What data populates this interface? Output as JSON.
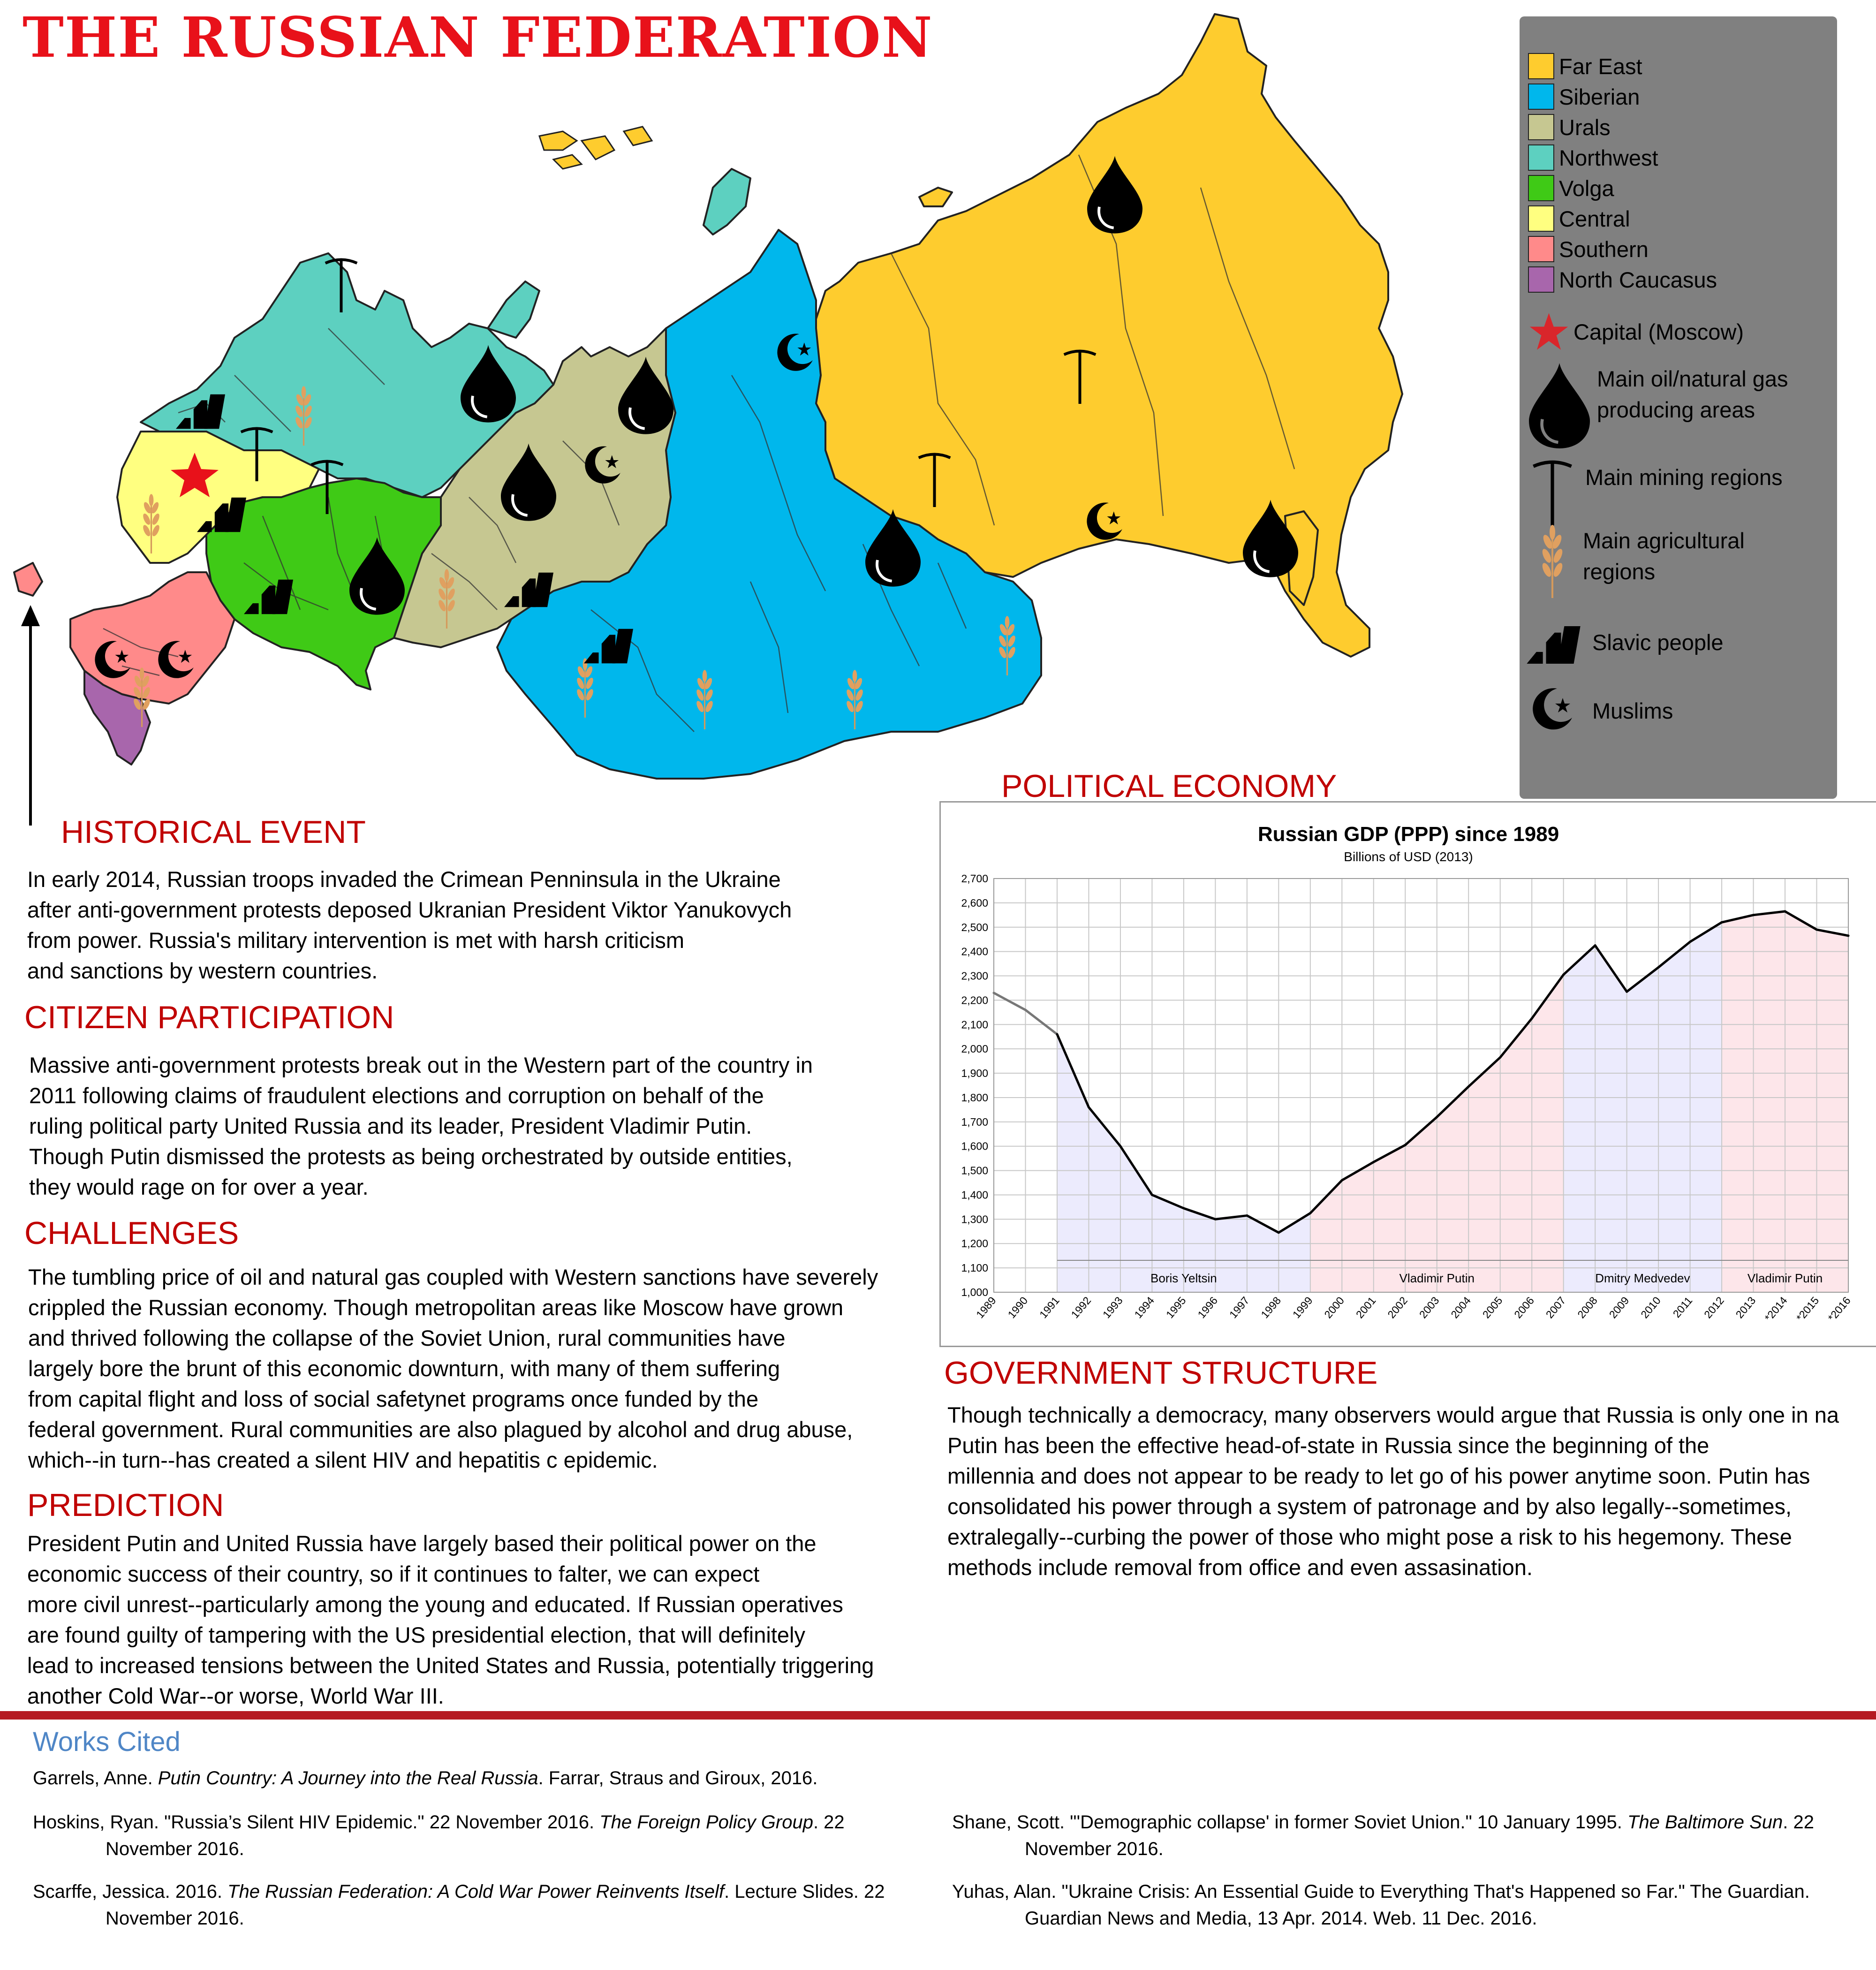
{
  "page": {
    "title": "THE RUSSIAN FEDERATION",
    "colors": {
      "title": "#e8111a",
      "heading": "#c00000",
      "rule": "#b51a22",
      "works_cited": "#4f86c6"
    }
  },
  "legend": {
    "regions": [
      {
        "label": "Far East",
        "color": "#fecc2e"
      },
      {
        "label": "Siberian",
        "color": "#00b7ec"
      },
      {
        "label": "Urals",
        "color": "#c6c791"
      },
      {
        "label": "Northwest",
        "color": "#5dd0c0"
      },
      {
        "label": "Volga",
        "color": "#3fca16"
      },
      {
        "label": "Central",
        "color": "#ffff80"
      },
      {
        "label": "Southern",
        "color": "#ff8a8a"
      },
      {
        "label": "North Caucasus",
        "color": "#a866ac"
      }
    ],
    "capital": "Capital (Moscow)",
    "oil": [
      "Main oil/natural gas",
      "producing areas"
    ],
    "mining": "Main mining regions",
    "agri": [
      "Main agricultural",
      "regions"
    ],
    "slavic": "Slavic people",
    "muslims": "Muslims",
    "icons": [
      "star-icon",
      "oil-drop-icon",
      "pickaxe-icon",
      "wheat-icon",
      "slavic-stripes-icon",
      "crescent-star-icon"
    ]
  },
  "sections": {
    "historical": {
      "heading": "HISTORICAL EVENT",
      "lines": [
        "In early 2014, Russian troops invaded the Crimean Penninsula in the Ukraine",
        "after anti-government protests deposed Ukranian President Viktor Yanukovych",
        "from power. Russia's military intervention is met with harsh criticism",
        "and sanctions by western countries."
      ]
    },
    "citizen": {
      "heading": "CITIZEN PARTICIPATION",
      "lines": [
        "Massive anti-government protests break out in the Western part of the country in",
        "2011 following claims of fraudulent elections and corruption on behalf of the",
        "ruling political party United Russia and its leader, President Vladimir Putin.",
        "Though Putin dismissed the protests as being orchestrated by outside entities,",
        "they would rage on for over a year."
      ]
    },
    "challenges": {
      "heading": "CHALLENGES",
      "lines": [
        "The tumbling price of oil and natural gas coupled with Western sanctions have severely",
        "crippled the Russian economy. Though metropolitan areas like Moscow have grown",
        "and thrived following the collapse of the Soviet Union, rural communities have",
        "largely bore the brunt of this economic downturn, with many of them suffering",
        "from capital flight and loss of social safetynet programs once funded by the",
        "federal government. Rural communities are also plagued by alcohol and drug abuse,",
        "which--in turn--has created a silent HIV and hepatitis c epidemic."
      ]
    },
    "prediction": {
      "heading": "PREDICTION",
      "lines": [
        "President Putin and United Russia have largely based their political power on the",
        "economic success of their country, so if it continues to falter, we can expect",
        "more civil unrest--particularly among the young and educated. If Russian operatives",
        "are found guilty of tampering with the US presidential election, that will definitely",
        "lead to increased tensions between the United States and Russia, potentially triggering",
        "another Cold War--or worse, World War III."
      ]
    },
    "political_economy": {
      "heading": "POLITICAL ECONOMY"
    },
    "government": {
      "heading": "GOVERNMENT STRUCTURE",
      "lines": [
        "Though technically a democracy, many observers would argue that Russia is only one in na",
        "Putin has been the effective head-of-state in Russia since the beginning of the",
        "millennia and does not appear to be ready to let go of his power anytime soon. Putin has",
        "consolidated his power through a system of patronage and by also legally--sometimes,",
        "extralegally--curbing the power of those who might pose a risk to his hegemony. These",
        "methods include removal from office and even assasination."
      ]
    }
  },
  "chart_data": {
    "type": "line",
    "title": "Russian GDP (PPP) since 1989",
    "subtitle": "Billions of USD (2013)",
    "x": [
      "1989",
      "1990",
      "1991",
      "1992",
      "1993",
      "1994",
      "1995",
      "1996",
      "1997",
      "1998",
      "1999",
      "2000",
      "2001",
      "2002",
      "2003",
      "2004",
      "2005",
      "2006",
      "2007",
      "2008",
      "2009",
      "2010",
      "2011",
      "2012",
      "2013",
      "*2014",
      "*2015",
      "*2016"
    ],
    "values": [
      2230,
      2160,
      2060,
      1760,
      1600,
      1400,
      1345,
      1300,
      1315,
      1245,
      1325,
      1460,
      1535,
      1605,
      1720,
      1845,
      1965,
      2125,
      2305,
      2425,
      2235,
      2335,
      2440,
      2520,
      2550,
      2565,
      2490,
      2465
    ],
    "ylim": [
      1000,
      2700
    ],
    "yticks": [
      "1,000",
      "1,100",
      "1,200",
      "1,300",
      "1,400",
      "1,500",
      "1,600",
      "1,700",
      "1,800",
      "1,900",
      "2,000",
      "2,100",
      "2,200",
      "2,300",
      "2,400",
      "2,500",
      "2,600",
      "2,700"
    ],
    "grid": true,
    "eras": [
      {
        "label": "Boris Yeltsin",
        "from": "1991",
        "to": "1999",
        "color": "#ecebfd"
      },
      {
        "label": "Vladimir Putin",
        "from": "1999",
        "to": "2007",
        "color": "#fde6ea"
      },
      {
        "label": "Dmitry Medvedev",
        "from": "2007",
        "to": "2012",
        "color": "#ecebfd"
      },
      {
        "label": "Vladimir Putin",
        "from": "2012",
        "to": "*2016",
        "color": "#fde6ea"
      }
    ]
  },
  "works_cited": {
    "title": "Works Cited",
    "garrels": {
      "pre": "Garrels, Anne. ",
      "italic": "Putin Country: A Journey into the Real Russia",
      "post": ". Farrar, Straus and Giroux, 2016."
    },
    "hoskins": {
      "pre": "Hoskins, Ryan. \"Russia’s Silent HIV Epidemic.\" 22 November 2016. ",
      "italic": "The Foreign Policy Group",
      "post": ". 22",
      "line2": "November 2016."
    },
    "scarffe": {
      "pre": "Scarffe, Jessica. 2016. ",
      "italic": "The Russian Federation: A Cold War Power Reinvents Itself",
      "post": ". Lecture Slides. 22",
      "line2": "November 2016."
    },
    "shane": {
      "pre": "Shane, Scott. \"'Demographic collapse' in former Soviet Union.\" 10 January 1995. ",
      "italic": "The Baltimore Sun",
      "post": ". 22",
      "line2": "November 2016."
    },
    "yuhas": {
      "line1": "Yuhas, Alan. \"Ukraine Crisis: An Essential Guide to Everything That's Happened so Far.\" The Guardian.",
      "line2": "Guardian News and Media, 13 Apr. 2014. Web. 11 Dec. 2016."
    }
  }
}
